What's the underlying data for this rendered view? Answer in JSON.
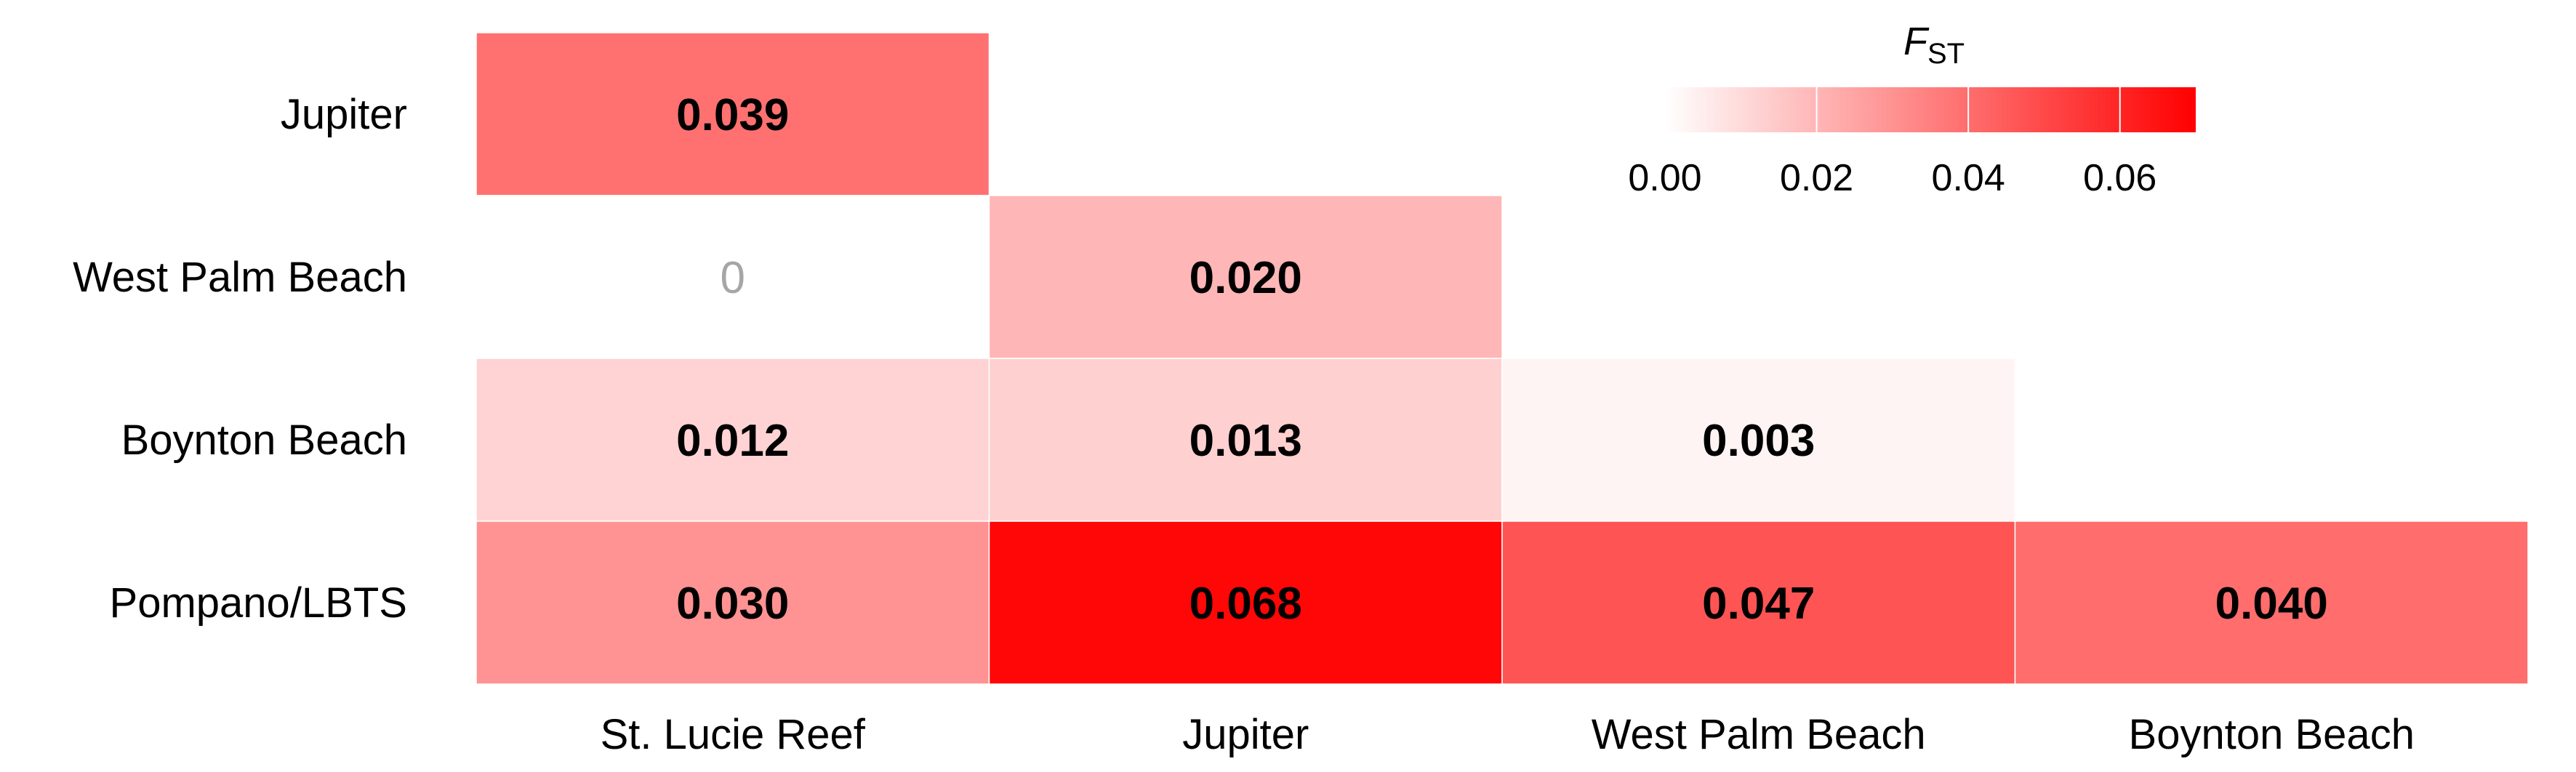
{
  "chart_data": {
    "type": "heatmap",
    "title": "",
    "legend": {
      "title_main": "F",
      "title_sub": "ST",
      "ticks": [
        0.0,
        0.02,
        0.04,
        0.06
      ],
      "tick_labels": [
        "0.00",
        "0.02",
        "0.04",
        "0.06"
      ],
      "range": [
        0,
        0.07
      ],
      "color_low": "#ffffff",
      "color_high": "#ff0000",
      "placement": "top-right"
    },
    "x_categories": [
      "St. Lucie Reef",
      "Jupiter",
      "West Palm Beach",
      "Boynton Beach"
    ],
    "y_categories": [
      "Jupiter",
      "West Palm Beach",
      "Boynton Beach",
      "Pompano/LBTS"
    ],
    "cells": [
      {
        "x": "St. Lucie Reef",
        "y": "Jupiter",
        "value": 0.039,
        "label": "0.039",
        "bold": true
      },
      {
        "x": "St. Lucie Reef",
        "y": "West Palm Beach",
        "value": 0,
        "label": "0",
        "bold": false
      },
      {
        "x": "Jupiter",
        "y": "West Palm Beach",
        "value": 0.02,
        "label": "0.020",
        "bold": true
      },
      {
        "x": "St. Lucie Reef",
        "y": "Boynton Beach",
        "value": 0.012,
        "label": "0.012",
        "bold": true
      },
      {
        "x": "Jupiter",
        "y": "Boynton Beach",
        "value": 0.013,
        "label": "0.013",
        "bold": true
      },
      {
        "x": "West Palm Beach",
        "y": "Boynton Beach",
        "value": 0.003,
        "label": "0.003",
        "bold": true
      },
      {
        "x": "St. Lucie Reef",
        "y": "Pompano/LBTS",
        "value": 0.03,
        "label": "0.030",
        "bold": true
      },
      {
        "x": "Jupiter",
        "y": "Pompano/LBTS",
        "value": 0.068,
        "label": "0.068",
        "bold": true
      },
      {
        "x": "West Palm Beach",
        "y": "Pompano/LBTS",
        "value": 0.047,
        "label": "0.047",
        "bold": true
      },
      {
        "x": "Boynton Beach",
        "y": "Pompano/LBTS",
        "value": 0.04,
        "label": "0.040",
        "bold": true
      }
    ],
    "xlabel": "",
    "ylabel": "",
    "grid": false
  }
}
